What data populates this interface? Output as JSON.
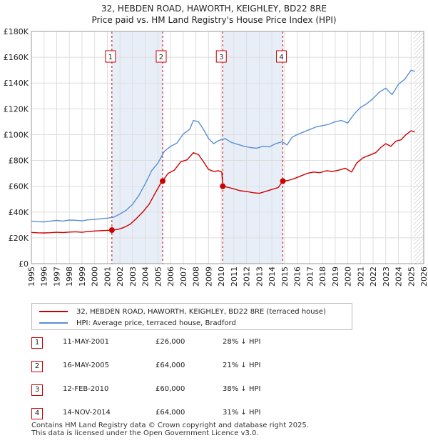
{
  "chart_data": {
    "type": "line",
    "title": "32, HEBDEN ROAD, HAWORTH, KEIGHLEY, BD22 8RE",
    "subtitle": "Price paid vs. HM Land Registry's House Price Index (HPI)",
    "xlim": [
      1995,
      2026
    ],
    "ylim": [
      0,
      180000
    ],
    "x_ticks": [
      1995,
      1996,
      1997,
      1998,
      1999,
      2000,
      2001,
      2002,
      2003,
      2004,
      2005,
      2006,
      2007,
      2008,
      2009,
      2010,
      2011,
      2012,
      2013,
      2014,
      2015,
      2016,
      2017,
      2018,
      2019,
      2020,
      2021,
      2022,
      2023,
      2024,
      2025,
      2026
    ],
    "y_ticks": [
      0,
      20000,
      40000,
      60000,
      80000,
      100000,
      120000,
      140000,
      160000,
      180000
    ],
    "y_tick_labels": [
      "£0",
      "£20K",
      "£40K",
      "£60K",
      "£80K",
      "£100K",
      "£120K",
      "£140K",
      "£160K",
      "£180K"
    ],
    "grid": true,
    "colors": {
      "property": "#cc0000",
      "hpi": "#5b8fd4",
      "shade": "#e8eef8",
      "grid": "#dddddd"
    },
    "series": [
      {
        "name": "32, HEBDEN ROAD, HAWORTH, KEIGHLEY, BD22 8RE (terraced house)",
        "color": "#cc0000",
        "points": [
          [
            1995.0,
            24200
          ],
          [
            1995.5,
            23900
          ],
          [
            1996.0,
            23800
          ],
          [
            1996.5,
            24000
          ],
          [
            1997.0,
            24300
          ],
          [
            1997.5,
            24100
          ],
          [
            1998.0,
            24500
          ],
          [
            1998.5,
            24700
          ],
          [
            1999.0,
            24300
          ],
          [
            1999.5,
            25000
          ],
          [
            2000.0,
            25300
          ],
          [
            2000.5,
            25600
          ],
          [
            2001.0,
            25800
          ],
          [
            2001.36,
            26000
          ],
          [
            2001.8,
            26500
          ],
          [
            2002.3,
            28000
          ],
          [
            2002.8,
            30500
          ],
          [
            2003.3,
            35000
          ],
          [
            2003.8,
            40000
          ],
          [
            2004.3,
            46000
          ],
          [
            2004.8,
            55000
          ],
          [
            2005.2,
            62000
          ],
          [
            2005.37,
            64000
          ],
          [
            2005.8,
            70000
          ],
          [
            2006.3,
            72500
          ],
          [
            2006.8,
            79000
          ],
          [
            2007.3,
            80500
          ],
          [
            2007.8,
            86000
          ],
          [
            2008.2,
            84500
          ],
          [
            2008.6,
            79000
          ],
          [
            2009.0,
            73000
          ],
          [
            2009.4,
            71500
          ],
          [
            2009.8,
            72000
          ],
          [
            2010.05,
            71000
          ],
          [
            2010.12,
            60000
          ],
          [
            2010.6,
            59000
          ],
          [
            2011.0,
            58000
          ],
          [
            2011.5,
            56500
          ],
          [
            2012.0,
            56000
          ],
          [
            2012.5,
            55000
          ],
          [
            2013.0,
            54500
          ],
          [
            2013.5,
            56000
          ],
          [
            2014.0,
            57500
          ],
          [
            2014.5,
            59000
          ],
          [
            2014.87,
            64000
          ],
          [
            2015.3,
            64500
          ],
          [
            2015.8,
            66000
          ],
          [
            2016.3,
            68000
          ],
          [
            2016.8,
            70000
          ],
          [
            2017.3,
            71000
          ],
          [
            2017.8,
            70500
          ],
          [
            2018.3,
            72000
          ],
          [
            2018.8,
            71500
          ],
          [
            2019.3,
            72500
          ],
          [
            2019.8,
            74000
          ],
          [
            2020.3,
            71000
          ],
          [
            2020.7,
            78000
          ],
          [
            2021.2,
            82000
          ],
          [
            2021.7,
            84000
          ],
          [
            2022.2,
            86000
          ],
          [
            2022.6,
            90000
          ],
          [
            2023.0,
            93000
          ],
          [
            2023.4,
            91000
          ],
          [
            2023.8,
            95000
          ],
          [
            2024.2,
            96000
          ],
          [
            2024.6,
            100000
          ],
          [
            2025.0,
            103000
          ],
          [
            2025.3,
            102000
          ]
        ]
      },
      {
        "name": "HPI: Average price, terraced house, Bradford",
        "color": "#5b8fd4",
        "points": [
          [
            1995.0,
            33000
          ],
          [
            1995.5,
            32500
          ],
          [
            1996.0,
            32400
          ],
          [
            1996.5,
            33000
          ],
          [
            1997.0,
            33500
          ],
          [
            1997.5,
            33000
          ],
          [
            1998.0,
            33800
          ],
          [
            1998.5,
            33600
          ],
          [
            1999.0,
            33200
          ],
          [
            1999.5,
            34000
          ],
          [
            2000.0,
            34300
          ],
          [
            2000.5,
            34800
          ],
          [
            2001.0,
            35300
          ],
          [
            2001.5,
            36000
          ],
          [
            2002.0,
            38500
          ],
          [
            2002.5,
            41500
          ],
          [
            2003.0,
            46000
          ],
          [
            2003.5,
            53000
          ],
          [
            2004.0,
            62000
          ],
          [
            2004.5,
            72000
          ],
          [
            2005.0,
            78000
          ],
          [
            2005.5,
            87000
          ],
          [
            2006.0,
            91000
          ],
          [
            2006.5,
            93500
          ],
          [
            2007.0,
            100500
          ],
          [
            2007.5,
            104000
          ],
          [
            2007.8,
            111000
          ],
          [
            2008.2,
            110000
          ],
          [
            2008.6,
            104000
          ],
          [
            2009.0,
            97000
          ],
          [
            2009.4,
            93000
          ],
          [
            2009.8,
            95500
          ],
          [
            2010.3,
            97000
          ],
          [
            2010.8,
            94000
          ],
          [
            2011.3,
            92500
          ],
          [
            2011.8,
            91000
          ],
          [
            2012.3,
            90000
          ],
          [
            2012.8,
            89500
          ],
          [
            2013.3,
            91000
          ],
          [
            2013.8,
            90500
          ],
          [
            2014.3,
            93000
          ],
          [
            2014.8,
            94500
          ],
          [
            2015.2,
            92000
          ],
          [
            2015.6,
            98000
          ],
          [
            2016.0,
            100000
          ],
          [
            2016.5,
            102000
          ],
          [
            2017.0,
            104000
          ],
          [
            2017.5,
            106000
          ],
          [
            2018.0,
            107000
          ],
          [
            2018.5,
            108000
          ],
          [
            2019.0,
            110000
          ],
          [
            2019.5,
            111000
          ],
          [
            2020.0,
            109000
          ],
          [
            2020.5,
            116000
          ],
          [
            2021.0,
            121000
          ],
          [
            2021.5,
            124000
          ],
          [
            2022.0,
            128000
          ],
          [
            2022.5,
            133000
          ],
          [
            2023.0,
            136000
          ],
          [
            2023.5,
            131000
          ],
          [
            2024.0,
            139000
          ],
          [
            2024.5,
            143000
          ],
          [
            2025.0,
            150000
          ],
          [
            2025.3,
            149000
          ]
        ]
      }
    ],
    "sales": [
      {
        "n": "1",
        "x": 2001.36,
        "price": 26000
      },
      {
        "n": "2",
        "x": 2005.37,
        "price": 64000
      },
      {
        "n": "3",
        "x": 2010.12,
        "price": 60000
      },
      {
        "n": "4",
        "x": 2014.87,
        "price": 64000
      }
    ],
    "future_from": 2025.2
  },
  "legend": {
    "property": "32, HEBDEN ROAD, HAWORTH, KEIGHLEY, BD22 8RE (terraced house)",
    "hpi": "HPI: Average price, terraced house, Bradford"
  },
  "sales_table": [
    {
      "n": "1",
      "date": "11-MAY-2001",
      "price": "£26,000",
      "hpi": "28% ↓ HPI"
    },
    {
      "n": "2",
      "date": "16-MAY-2005",
      "price": "£64,000",
      "hpi": "21% ↓ HPI"
    },
    {
      "n": "3",
      "date": "12-FEB-2010",
      "price": "£60,000",
      "hpi": "38% ↓ HPI"
    },
    {
      "n": "4",
      "date": "14-NOV-2014",
      "price": "£64,000",
      "hpi": "31% ↓ HPI"
    }
  ],
  "footer": {
    "line1": "Contains HM Land Registry data © Crown copyright and database right 2025.",
    "line2": "This data is licensed under the Open Government Licence v3.0."
  }
}
